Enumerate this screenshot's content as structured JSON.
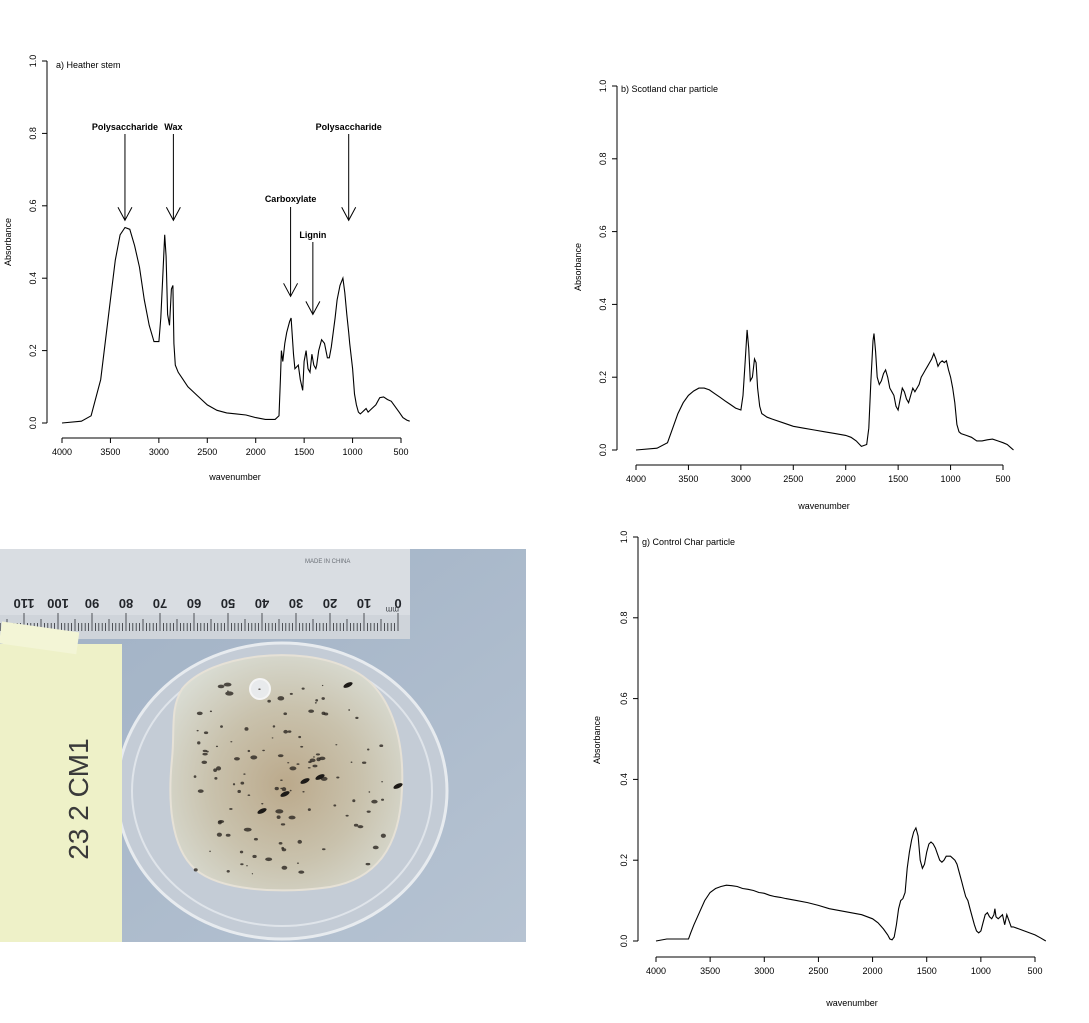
{
  "chart_data": [
    {
      "type": "line",
      "title": "a) Heather stem",
      "xlabel": "wavenumber",
      "ylabel": "Absorbance",
      "xlim": [
        4000,
        400
      ],
      "ylim": [
        0,
        1.0
      ],
      "xticks": [
        "4000",
        "3500",
        "3000",
        "2500",
        "2000",
        "1500",
        "1000",
        "500"
      ],
      "yticks": [
        "0.0",
        "0.2",
        "0.4",
        "0.6",
        "0.8",
        "1.0"
      ],
      "grid": false,
      "series": [
        {
          "x": [
            4000,
            3800,
            3700,
            3600,
            3500,
            3450,
            3400,
            3350,
            3300,
            3250,
            3200,
            3150,
            3100,
            3050,
            3000,
            2980,
            2960,
            2940,
            2925,
            2910,
            2890,
            2870,
            2855,
            2845,
            2830,
            2800,
            2750,
            2700,
            2600,
            2500,
            2400,
            2300,
            2200,
            2100,
            2000,
            1900,
            1800,
            1760,
            1745,
            1735,
            1720,
            1700,
            1680,
            1650,
            1635,
            1610,
            1595,
            1560,
            1540,
            1515,
            1500,
            1480,
            1460,
            1440,
            1420,
            1400,
            1380,
            1370,
            1350,
            1320,
            1290,
            1260,
            1240,
            1220,
            1200,
            1180,
            1160,
            1130,
            1100,
            1080,
            1060,
            1040,
            1030,
            1000,
            980,
            960,
            940,
            920,
            900,
            880,
            860,
            840,
            800,
            760,
            720,
            680,
            640,
            600,
            560,
            520,
            480,
            440,
            410
          ],
          "y": [
            0.0,
            0.005,
            0.02,
            0.12,
            0.34,
            0.45,
            0.52,
            0.54,
            0.535,
            0.49,
            0.43,
            0.34,
            0.27,
            0.225,
            0.225,
            0.29,
            0.4,
            0.52,
            0.46,
            0.3,
            0.27,
            0.37,
            0.38,
            0.22,
            0.16,
            0.14,
            0.12,
            0.1,
            0.075,
            0.05,
            0.035,
            0.028,
            0.025,
            0.022,
            0.015,
            0.01,
            0.01,
            0.02,
            0.12,
            0.2,
            0.17,
            0.22,
            0.25,
            0.28,
            0.29,
            0.19,
            0.15,
            0.16,
            0.12,
            0.09,
            0.17,
            0.2,
            0.15,
            0.14,
            0.19,
            0.16,
            0.15,
            0.16,
            0.2,
            0.23,
            0.22,
            0.18,
            0.18,
            0.21,
            0.25,
            0.29,
            0.34,
            0.38,
            0.4,
            0.36,
            0.3,
            0.25,
            0.22,
            0.15,
            0.08,
            0.05,
            0.03,
            0.025,
            0.03,
            0.035,
            0.04,
            0.03,
            0.04,
            0.05,
            0.07,
            0.072,
            0.065,
            0.06,
            0.045,
            0.03,
            0.015,
            0.008,
            0.005
          ]
        }
      ],
      "annotations": [
        {
          "label": "Polysaccharide",
          "x": 3350,
          "y": 0.56
        },
        {
          "label": "Wax",
          "x": 2850,
          "y": 0.56
        },
        {
          "label": "Carboxylate",
          "x": 1640,
          "y": 0.35
        },
        {
          "label": "Lignin",
          "x": 1410,
          "y": 0.3
        },
        {
          "label": "Polysaccharide",
          "x": 1040,
          "y": 0.56
        }
      ]
    },
    {
      "type": "line",
      "title": "b)  Scotland char particle",
      "xlabel": "wavenumber",
      "ylabel": "Absorbance",
      "xlim": [
        4000,
        400
      ],
      "ylim": [
        0,
        1.0
      ],
      "xticks": [
        "4000",
        "3500",
        "3000",
        "2500",
        "2000",
        "1500",
        "1000",
        "500"
      ],
      "yticks": [
        "0.0",
        "0.2",
        "0.4",
        "0.6",
        "0.8",
        "1.0"
      ],
      "grid": false,
      "series": [
        {
          "x": [
            4000,
            3800,
            3700,
            3650,
            3600,
            3550,
            3500,
            3450,
            3400,
            3350,
            3300,
            3250,
            3200,
            3150,
            3100,
            3050,
            3000,
            2980,
            2960,
            2940,
            2925,
            2910,
            2890,
            2870,
            2855,
            2840,
            2820,
            2800,
            2750,
            2700,
            2600,
            2500,
            2400,
            2300,
            2200,
            2100,
            2000,
            1950,
            1900,
            1850,
            1800,
            1780,
            1760,
            1740,
            1730,
            1715,
            1700,
            1680,
            1660,
            1640,
            1620,
            1600,
            1580,
            1560,
            1540,
            1520,
            1500,
            1480,
            1460,
            1440,
            1420,
            1400,
            1380,
            1360,
            1340,
            1320,
            1300,
            1280,
            1260,
            1240,
            1220,
            1200,
            1180,
            1160,
            1140,
            1120,
            1100,
            1080,
            1060,
            1040,
            1020,
            1000,
            980,
            960,
            940,
            920,
            900,
            850,
            800,
            750,
            700,
            650,
            600,
            550,
            500,
            460,
            420,
            400
          ],
          "y": [
            0.0,
            0.005,
            0.02,
            0.06,
            0.1,
            0.13,
            0.15,
            0.162,
            0.17,
            0.17,
            0.165,
            0.155,
            0.145,
            0.135,
            0.125,
            0.115,
            0.11,
            0.15,
            0.24,
            0.33,
            0.28,
            0.19,
            0.2,
            0.25,
            0.24,
            0.17,
            0.12,
            0.1,
            0.09,
            0.085,
            0.075,
            0.065,
            0.06,
            0.055,
            0.05,
            0.045,
            0.04,
            0.035,
            0.025,
            0.01,
            0.015,
            0.06,
            0.19,
            0.3,
            0.32,
            0.27,
            0.2,
            0.18,
            0.19,
            0.21,
            0.22,
            0.2,
            0.17,
            0.16,
            0.15,
            0.12,
            0.11,
            0.14,
            0.17,
            0.16,
            0.14,
            0.13,
            0.15,
            0.17,
            0.16,
            0.17,
            0.18,
            0.2,
            0.21,
            0.22,
            0.23,
            0.24,
            0.25,
            0.265,
            0.25,
            0.23,
            0.24,
            0.245,
            0.24,
            0.245,
            0.22,
            0.2,
            0.17,
            0.13,
            0.07,
            0.05,
            0.045,
            0.04,
            0.035,
            0.025,
            0.025,
            0.028,
            0.03,
            0.025,
            0.02,
            0.015,
            0.005,
            0.0
          ]
        }
      ]
    },
    {
      "type": "line",
      "title": "g)  Control Char particle",
      "xlabel": "wavenumber",
      "ylabel": "Absorbance",
      "xlim": [
        4000,
        400
      ],
      "ylim": [
        0,
        1.0
      ],
      "xticks": [
        "4000",
        "3500",
        "3000",
        "2500",
        "2000",
        "1500",
        "1000",
        "500"
      ],
      "yticks": [
        "0.0",
        "0.2",
        "0.4",
        "0.6",
        "0.8",
        "1.0"
      ],
      "grid": false,
      "series": [
        {
          "x": [
            4000,
            3900,
            3800,
            3700,
            3680,
            3650,
            3600,
            3550,
            3500,
            3450,
            3400,
            3350,
            3300,
            3250,
            3200,
            3150,
            3100,
            3050,
            3000,
            2950,
            2900,
            2850,
            2800,
            2700,
            2600,
            2500,
            2400,
            2300,
            2200,
            2100,
            2000,
            1950,
            1900,
            1860,
            1840,
            1820,
            1800,
            1780,
            1760,
            1740,
            1720,
            1700,
            1680,
            1660,
            1640,
            1620,
            1600,
            1580,
            1560,
            1540,
            1520,
            1500,
            1480,
            1460,
            1440,
            1420,
            1400,
            1380,
            1360,
            1340,
            1320,
            1300,
            1280,
            1260,
            1240,
            1220,
            1200,
            1180,
            1160,
            1140,
            1120,
            1100,
            1080,
            1060,
            1040,
            1020,
            1000,
            980,
            960,
            940,
            920,
            900,
            880,
            870,
            860,
            840,
            820,
            800,
            780,
            760,
            740,
            720,
            700,
            650,
            600,
            550,
            500,
            450,
            400
          ],
          "y": [
            0.0,
            0.005,
            0.005,
            0.005,
            0.02,
            0.04,
            0.07,
            0.1,
            0.12,
            0.13,
            0.135,
            0.138,
            0.137,
            0.135,
            0.13,
            0.128,
            0.125,
            0.12,
            0.118,
            0.113,
            0.11,
            0.108,
            0.105,
            0.1,
            0.095,
            0.088,
            0.08,
            0.075,
            0.07,
            0.065,
            0.055,
            0.045,
            0.03,
            0.015,
            0.005,
            0.003,
            0.01,
            0.04,
            0.08,
            0.1,
            0.105,
            0.12,
            0.18,
            0.22,
            0.25,
            0.27,
            0.28,
            0.26,
            0.2,
            0.18,
            0.19,
            0.22,
            0.24,
            0.245,
            0.24,
            0.23,
            0.215,
            0.2,
            0.195,
            0.2,
            0.21,
            0.21,
            0.21,
            0.205,
            0.2,
            0.19,
            0.17,
            0.15,
            0.13,
            0.11,
            0.1,
            0.08,
            0.06,
            0.04,
            0.025,
            0.02,
            0.025,
            0.045,
            0.065,
            0.07,
            0.06,
            0.055,
            0.065,
            0.08,
            0.06,
            0.055,
            0.06,
            0.065,
            0.04,
            0.065,
            0.05,
            0.035,
            0.035,
            0.03,
            0.025,
            0.02,
            0.015,
            0.008,
            0.0
          ]
        }
      ]
    }
  ],
  "photo": {
    "ruler_maker_text": "MADE IN CHINA",
    "ruler_tick_labels": [
      "110",
      "100",
      "90",
      "80",
      "70",
      "60",
      "50",
      "40",
      "30",
      "20",
      "10",
      "0"
    ],
    "ruler_unit_text": "mm",
    "label_card_text": "23  2  CM1"
  }
}
